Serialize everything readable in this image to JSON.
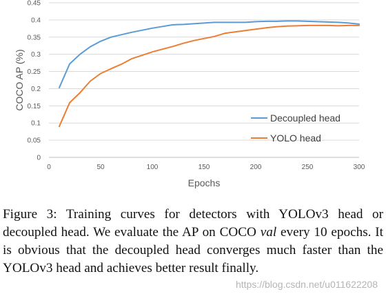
{
  "chart_data": {
    "type": "line",
    "xlabel": "Epochs",
    "ylabel": "COCO AP (%)",
    "xlim": [
      0,
      300
    ],
    "ylim": [
      0,
      0.45
    ],
    "x_ticks": [
      0,
      50,
      100,
      150,
      200,
      250,
      300
    ],
    "y_ticks": [
      0,
      0.05,
      0.1,
      0.15,
      0.2,
      0.25,
      0.3,
      0.35,
      0.4,
      0.45
    ],
    "y_tick_labels": [
      "0",
      "0.05",
      "0.1",
      "0.15",
      "0.2",
      "0.25",
      "0.3",
      "0.35",
      "0.4",
      "0.45"
    ],
    "grid": "horizontal",
    "legend_position": "right-middle",
    "x": [
      10,
      20,
      30,
      40,
      50,
      60,
      70,
      80,
      90,
      100,
      110,
      120,
      130,
      140,
      150,
      160,
      170,
      180,
      190,
      200,
      210,
      220,
      230,
      240,
      250,
      260,
      270,
      280,
      290,
      300
    ],
    "series": [
      {
        "name": "Decoupled head",
        "color": "#5B9BD5",
        "values": [
          0.203,
          0.272,
          0.3,
          0.322,
          0.338,
          0.35,
          0.357,
          0.364,
          0.37,
          0.376,
          0.381,
          0.386,
          0.387,
          0.389,
          0.391,
          0.393,
          0.393,
          0.393,
          0.393,
          0.395,
          0.396,
          0.396,
          0.397,
          0.397,
          0.396,
          0.395,
          0.394,
          0.393,
          0.391,
          0.388
        ]
      },
      {
        "name": "YOLO head",
        "color": "#ED7D31",
        "values": [
          0.09,
          0.159,
          0.188,
          0.222,
          0.244,
          0.258,
          0.271,
          0.287,
          0.297,
          0.307,
          0.315,
          0.323,
          0.332,
          0.34,
          0.346,
          0.352,
          0.361,
          0.365,
          0.369,
          0.373,
          0.377,
          0.38,
          0.382,
          0.383,
          0.384,
          0.384,
          0.384,
          0.383,
          0.384,
          0.384
        ]
      }
    ]
  },
  "caption": {
    "prefix": "Figure 3: Training curves for detectors with YOLOv3 head or decoupled head. We evaluate the AP on COCO ",
    "italic": "val",
    "suffix": " every 10 epochs. It is obvious that the decoupled head converges much faster than the YOLOv3 head and achieves better result finally."
  },
  "watermark": "https://blog.csdn.net/u011622208"
}
